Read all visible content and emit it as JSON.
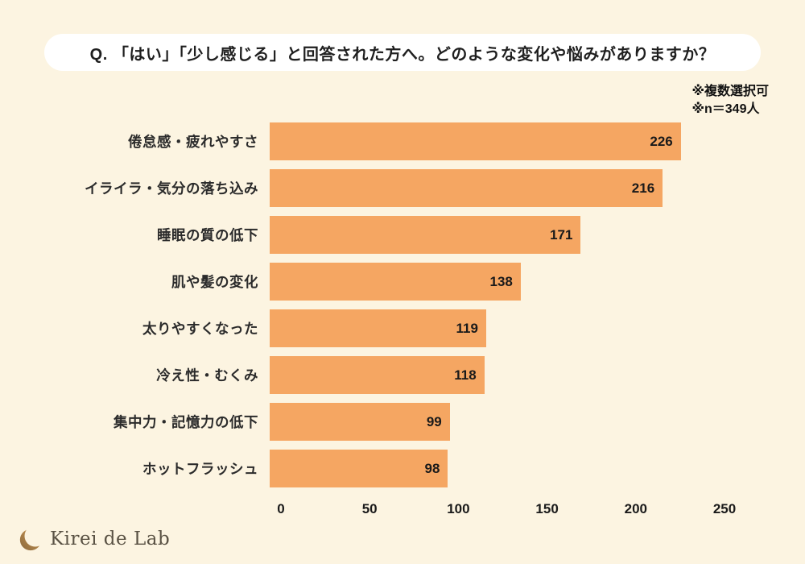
{
  "title": "Q. 「はい」「少し感じる」と回答された方へ。どのような変化や悩みがありますか？",
  "notes": {
    "line1": "※複数選択可",
    "line2": "※n＝349人"
  },
  "chart_data": {
    "type": "bar",
    "orientation": "horizontal",
    "categories": [
      "倦怠感・疲れやすさ",
      "イライラ・気分の落ち込み",
      "睡眠の質の低下",
      "肌や髪の変化",
      "太りやすくなった",
      "冷え性・むくみ",
      "集中力・記憶力の低下",
      "ホットフラッシュ"
    ],
    "values": [
      226,
      216,
      171,
      138,
      119,
      118,
      99,
      98
    ],
    "x_ticks": [
      0,
      50,
      100,
      150,
      200,
      250
    ],
    "xlim": [
      0,
      250
    ],
    "grid": false,
    "value_labels": "inside-end",
    "bar_color": "#F5A662",
    "background_color": "#FCF4E1"
  },
  "logo": {
    "text": "Kirei de Lab",
    "icon": "crescent-icon"
  }
}
